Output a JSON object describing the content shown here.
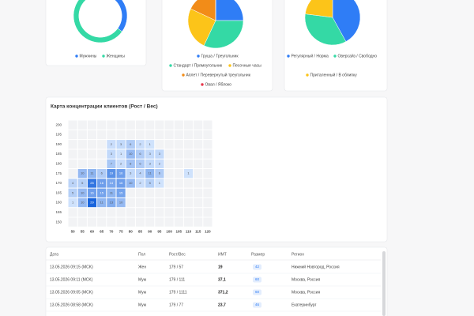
{
  "chart_data": [
    {
      "type": "donut",
      "labels": [
        "Мужчины",
        "Женщины"
      ],
      "values": [
        35,
        65
      ],
      "colors": [
        "#2f7df6",
        "#34d9a5"
      ]
    },
    {
      "type": "pie",
      "labels": [
        "Груша / Треугольник",
        "Стандарт / Прямоугольник",
        "Песочные часы",
        "Аплет / Перевернутый треугольник",
        "Овал / Яблоко"
      ],
      "values": [
        25,
        32,
        25,
        18,
        0
      ],
      "colors": [
        "#2f7df6",
        "#34d9a5",
        "#fcc419",
        "#f28c18",
        "#e8364b"
      ]
    },
    {
      "type": "pie",
      "labels": [
        "Регулярный / Норма",
        "Оверсайз / Свободно",
        "Приталенный / В облипку"
      ],
      "values": [
        42,
        35,
        23
      ],
      "colors": [
        "#2f7df6",
        "#34d9a5",
        "#fcc419"
      ]
    },
    {
      "type": "heatmap",
      "title": "Карта концентрации клиентов (Рост / Вес)",
      "x": [
        50,
        55,
        60,
        65,
        70,
        75,
        80,
        85,
        90,
        95,
        100,
        105,
        110,
        115,
        120
      ],
      "y": [
        200,
        195,
        190,
        185,
        180,
        175,
        170,
        165,
        160,
        155,
        150
      ],
      "values": [
        [
          null,
          null,
          null,
          null,
          null,
          null,
          null,
          null,
          null,
          null,
          null,
          null,
          null,
          null,
          null
        ],
        [
          null,
          null,
          null,
          null,
          null,
          null,
          null,
          null,
          null,
          null,
          null,
          null,
          null,
          null,
          null
        ],
        [
          null,
          null,
          null,
          null,
          2,
          3,
          6,
          2,
          1,
          null,
          null,
          null,
          null,
          null,
          null
        ],
        [
          null,
          null,
          null,
          null,
          3,
          1,
          10,
          6,
          3,
          3,
          null,
          null,
          null,
          null,
          null
        ],
        [
          null,
          null,
          null,
          null,
          7,
          2,
          8,
          6,
          3,
          2,
          null,
          null,
          null,
          null,
          null
        ],
        [
          null,
          10,
          11,
          6,
          19,
          16,
          3,
          4,
          11,
          6,
          null,
          null,
          1,
          null,
          null
        ],
        [
          4,
          5,
          25,
          16,
          14,
          16,
          10,
          2,
          5,
          1,
          null,
          null,
          null,
          null,
          null
        ],
        [
          5,
          10,
          16,
          15,
          11,
          15,
          null,
          null,
          null,
          null,
          null,
          null,
          null,
          null,
          null
        ],
        [
          1,
          10,
          29,
          11,
          13,
          10,
          null,
          null,
          null,
          null,
          null,
          null,
          null,
          null,
          null
        ],
        [
          null,
          null,
          null,
          null,
          null,
          null,
          null,
          null,
          null,
          null,
          null,
          null,
          null,
          null,
          null
        ],
        [
          null,
          null,
          null,
          null,
          null,
          null,
          null,
          null,
          null,
          null,
          null,
          null,
          null,
          null,
          null
        ]
      ]
    }
  ],
  "table": {
    "headers": [
      "Дата",
      "Пол",
      "Рост/Вес",
      "ИМТ",
      "Размер",
      "Регион"
    ],
    "rows": [
      [
        "13.05.2026 09:15 (MCK)",
        "Жен",
        "179 / 57",
        "19",
        "42",
        "Нижний Новгород, Россия"
      ],
      [
        "13.05.2026 09:11 (MCK)",
        "Муж",
        "179 / 111",
        "37,1",
        "60",
        "Москва, Россия"
      ],
      [
        "13.05.2026 09:05 (MCK)",
        "Муж",
        "179 / 1111",
        "371,2",
        "60",
        "Москва, Россия"
      ],
      [
        "13.05.2026 08:58 (MCK)",
        "Муж",
        "179 / 77",
        "23,7",
        "46",
        "Екатеринбург"
      ]
    ]
  }
}
